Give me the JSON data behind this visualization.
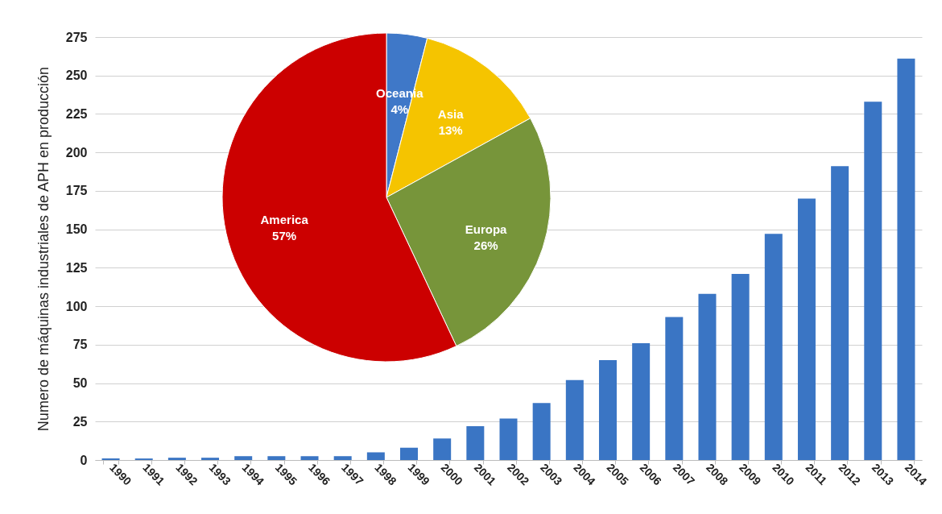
{
  "chart_data": [
    {
      "type": "bar",
      "ylabel": "Numero de máquinas industriales de APH en producción",
      "categories": [
        "1990",
        "1991",
        "1992",
        "1993",
        "1994",
        "1995",
        "1996",
        "1997",
        "1998",
        "1999",
        "2000",
        "2001",
        "2002",
        "2003",
        "2004",
        "2005",
        "2006",
        "2007",
        "2008",
        "2009",
        "2010",
        "2011",
        "2012",
        "2013",
        "2014"
      ],
      "values": [
        1,
        1,
        1.5,
        1.5,
        2.5,
        2.5,
        2.5,
        2.5,
        5,
        8,
        14,
        22,
        27,
        37,
        52,
        65,
        76,
        93,
        108,
        121,
        147,
        170,
        191,
        233,
        261
      ],
      "color": "#3a75c4",
      "ylim": [
        0,
        275
      ],
      "yticks": [
        0,
        25,
        50,
        75,
        100,
        125,
        150,
        175,
        200,
        225,
        250,
        275
      ],
      "grid": "y"
    },
    {
      "type": "pie",
      "categories": [
        "Oceania",
        "Asia",
        "Europa",
        "America"
      ],
      "values": [
        4,
        13,
        26,
        57
      ],
      "colors": [
        "#3f78c8",
        "#f5c400",
        "#77953a",
        "#cc0000"
      ],
      "value_labels": [
        "4%",
        "13%",
        "26%",
        "57%"
      ]
    }
  ]
}
